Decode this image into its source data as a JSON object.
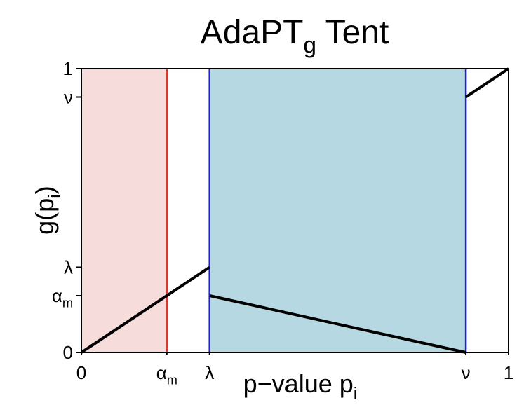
{
  "chart_data": {
    "type": "line",
    "title": [
      "AdaPT",
      "g",
      " Tent"
    ],
    "x_label": [
      "p−value p",
      "i"
    ],
    "y_label": [
      "g(p",
      "i",
      ")"
    ],
    "xlim": [
      0,
      1
    ],
    "ylim": [
      0,
      1
    ],
    "xticks": [
      0,
      {
        "value": 0.2,
        "label": [
          "α",
          "m"
        ]
      },
      {
        "value": 0.3,
        "label": "λ"
      },
      {
        "value": 0.9,
        "label": "ν"
      },
      1
    ],
    "yticks": [
      0,
      {
        "value": 0.2,
        "label": [
          "α",
          "m"
        ]
      },
      {
        "value": 0.3,
        "label": "λ"
      },
      {
        "value": 0.9,
        "label": "ν"
      },
      1
    ],
    "shaded": [
      {
        "from": 0,
        "to": 0.2,
        "color": "#f7dcdc"
      },
      {
        "from": 0.3,
        "to": 0.9,
        "color": "#b6d8e3"
      }
    ],
    "vlines": [
      {
        "x": 0.2,
        "color": "#e0382b"
      },
      {
        "x": 0.3,
        "color": "#1f1fe0"
      },
      {
        "x": 0.9,
        "color": "#1f1fe0"
      }
    ],
    "series": [
      {
        "color": "#000000",
        "x": [
          0,
          0.3,
          null,
          0.3,
          0.9,
          null,
          0.9,
          1
        ],
        "values": [
          0,
          0.3,
          null,
          0.2,
          0,
          null,
          0.9,
          1
        ]
      }
    ]
  }
}
